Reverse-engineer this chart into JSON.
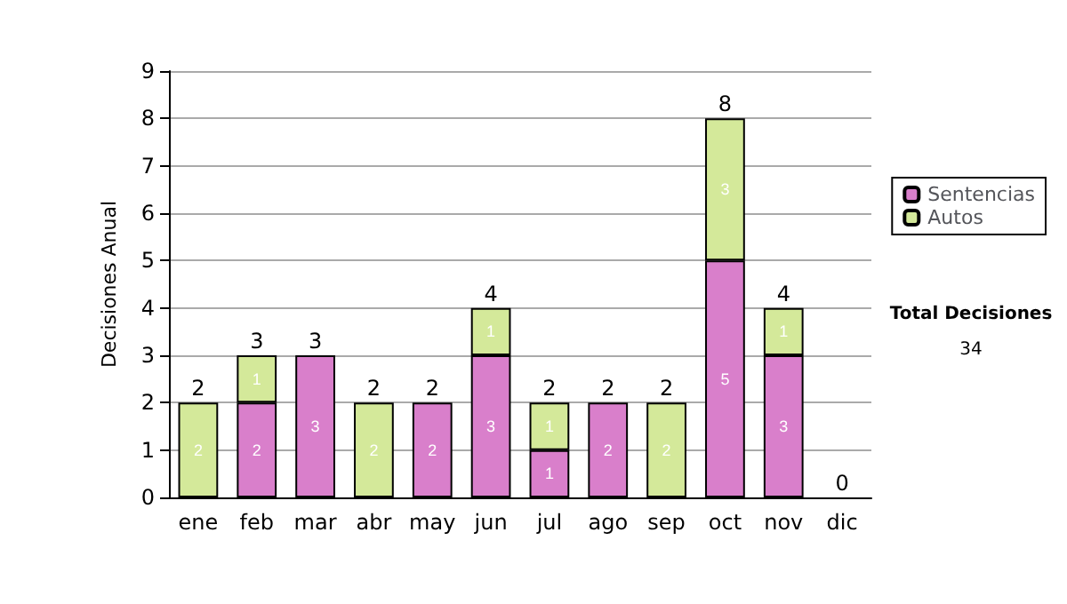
{
  "chart_data": {
    "type": "bar",
    "stacked": true,
    "ylabel": "Decisiones Anual",
    "categories": [
      "ene",
      "feb",
      "mar",
      "abr",
      "may",
      "jun",
      "jul",
      "ago",
      "sep",
      "oct",
      "nov",
      "dic"
    ],
    "series": [
      {
        "name": "Sentencias",
        "color": "#d97fcb",
        "values": [
          0,
          2,
          3,
          0,
          2,
          3,
          1,
          2,
          0,
          5,
          3,
          0
        ],
        "value_labels": [
          null,
          "2",
          "3",
          null,
          "2",
          "3",
          "1",
          "2",
          null,
          "5",
          "3",
          null
        ]
      },
      {
        "name": "Autos",
        "color": "#d4e99a",
        "values": [
          2,
          1,
          0,
          2,
          0,
          1,
          1,
          0,
          2,
          3,
          1,
          0
        ],
        "value_labels": [
          "2",
          "1",
          null,
          "2",
          null,
          "1",
          "1",
          null,
          "2",
          "3",
          "1",
          null
        ]
      }
    ],
    "totals": [
      "2",
      "3",
      "3",
      "2",
      "2",
      "4",
      "2",
      "2",
      "2",
      "8",
      "4",
      "0"
    ],
    "ylim": [
      0,
      9
    ],
    "yticks": [
      0,
      1,
      2,
      3,
      4,
      5,
      6,
      7,
      8,
      9
    ],
    "grid": "y",
    "legend": "right",
    "annotations": [
      "Total Decisiones",
      "34"
    ]
  }
}
